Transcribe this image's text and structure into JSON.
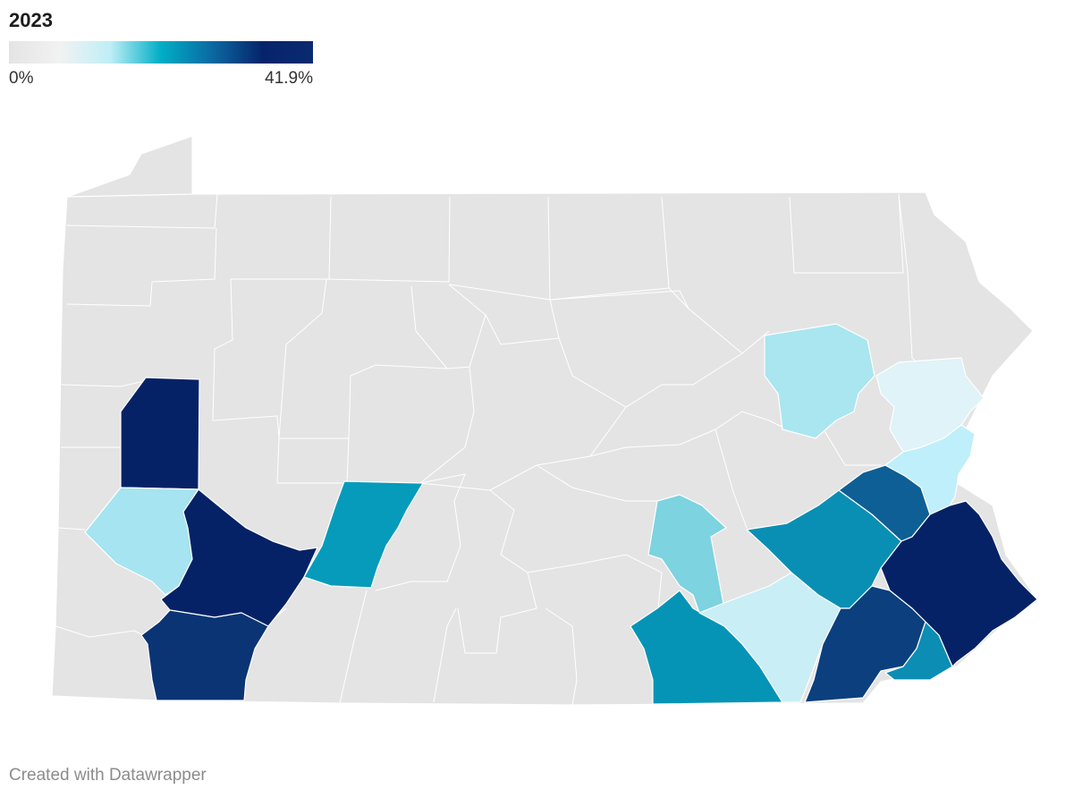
{
  "legend": {
    "title": "2023",
    "min_label": "0%",
    "max_label": "41.9%",
    "gradient_colors": [
      "#e4e4e4",
      "#f2f2f2",
      "#bfeef6",
      "#00aec6",
      "#0b6aa2",
      "#06246b",
      "#0a2a70"
    ]
  },
  "map": {
    "base_color": "#e4e4e4",
    "highlighted_counties": [
      {
        "id": "county-a",
        "color": "#062266"
      },
      {
        "id": "county-b",
        "color": "#a5e4f0"
      },
      {
        "id": "county-c",
        "color": "#062266"
      },
      {
        "id": "county-d",
        "color": "#0b3474"
      },
      {
        "id": "county-e",
        "color": "#069bbb"
      },
      {
        "id": "county-f",
        "color": "#7dd3e0"
      },
      {
        "id": "county-g",
        "color": "#0594b6"
      },
      {
        "id": "county-h",
        "color": "#caeef5"
      },
      {
        "id": "county-i",
        "color": "#0a8fb4"
      },
      {
        "id": "county-j",
        "color": "#0e5f95"
      },
      {
        "id": "county-k",
        "color": "#0b3f7e"
      },
      {
        "id": "county-l",
        "color": "#0c8db4"
      },
      {
        "id": "county-m",
        "color": "#062266"
      },
      {
        "id": "county-n",
        "color": "#a9e6f0"
      },
      {
        "id": "county-o",
        "color": "#dff3f8"
      },
      {
        "id": "county-p",
        "color": "#bfeffa"
      }
    ]
  },
  "footer": {
    "credit": "Created with Datawrapper"
  }
}
